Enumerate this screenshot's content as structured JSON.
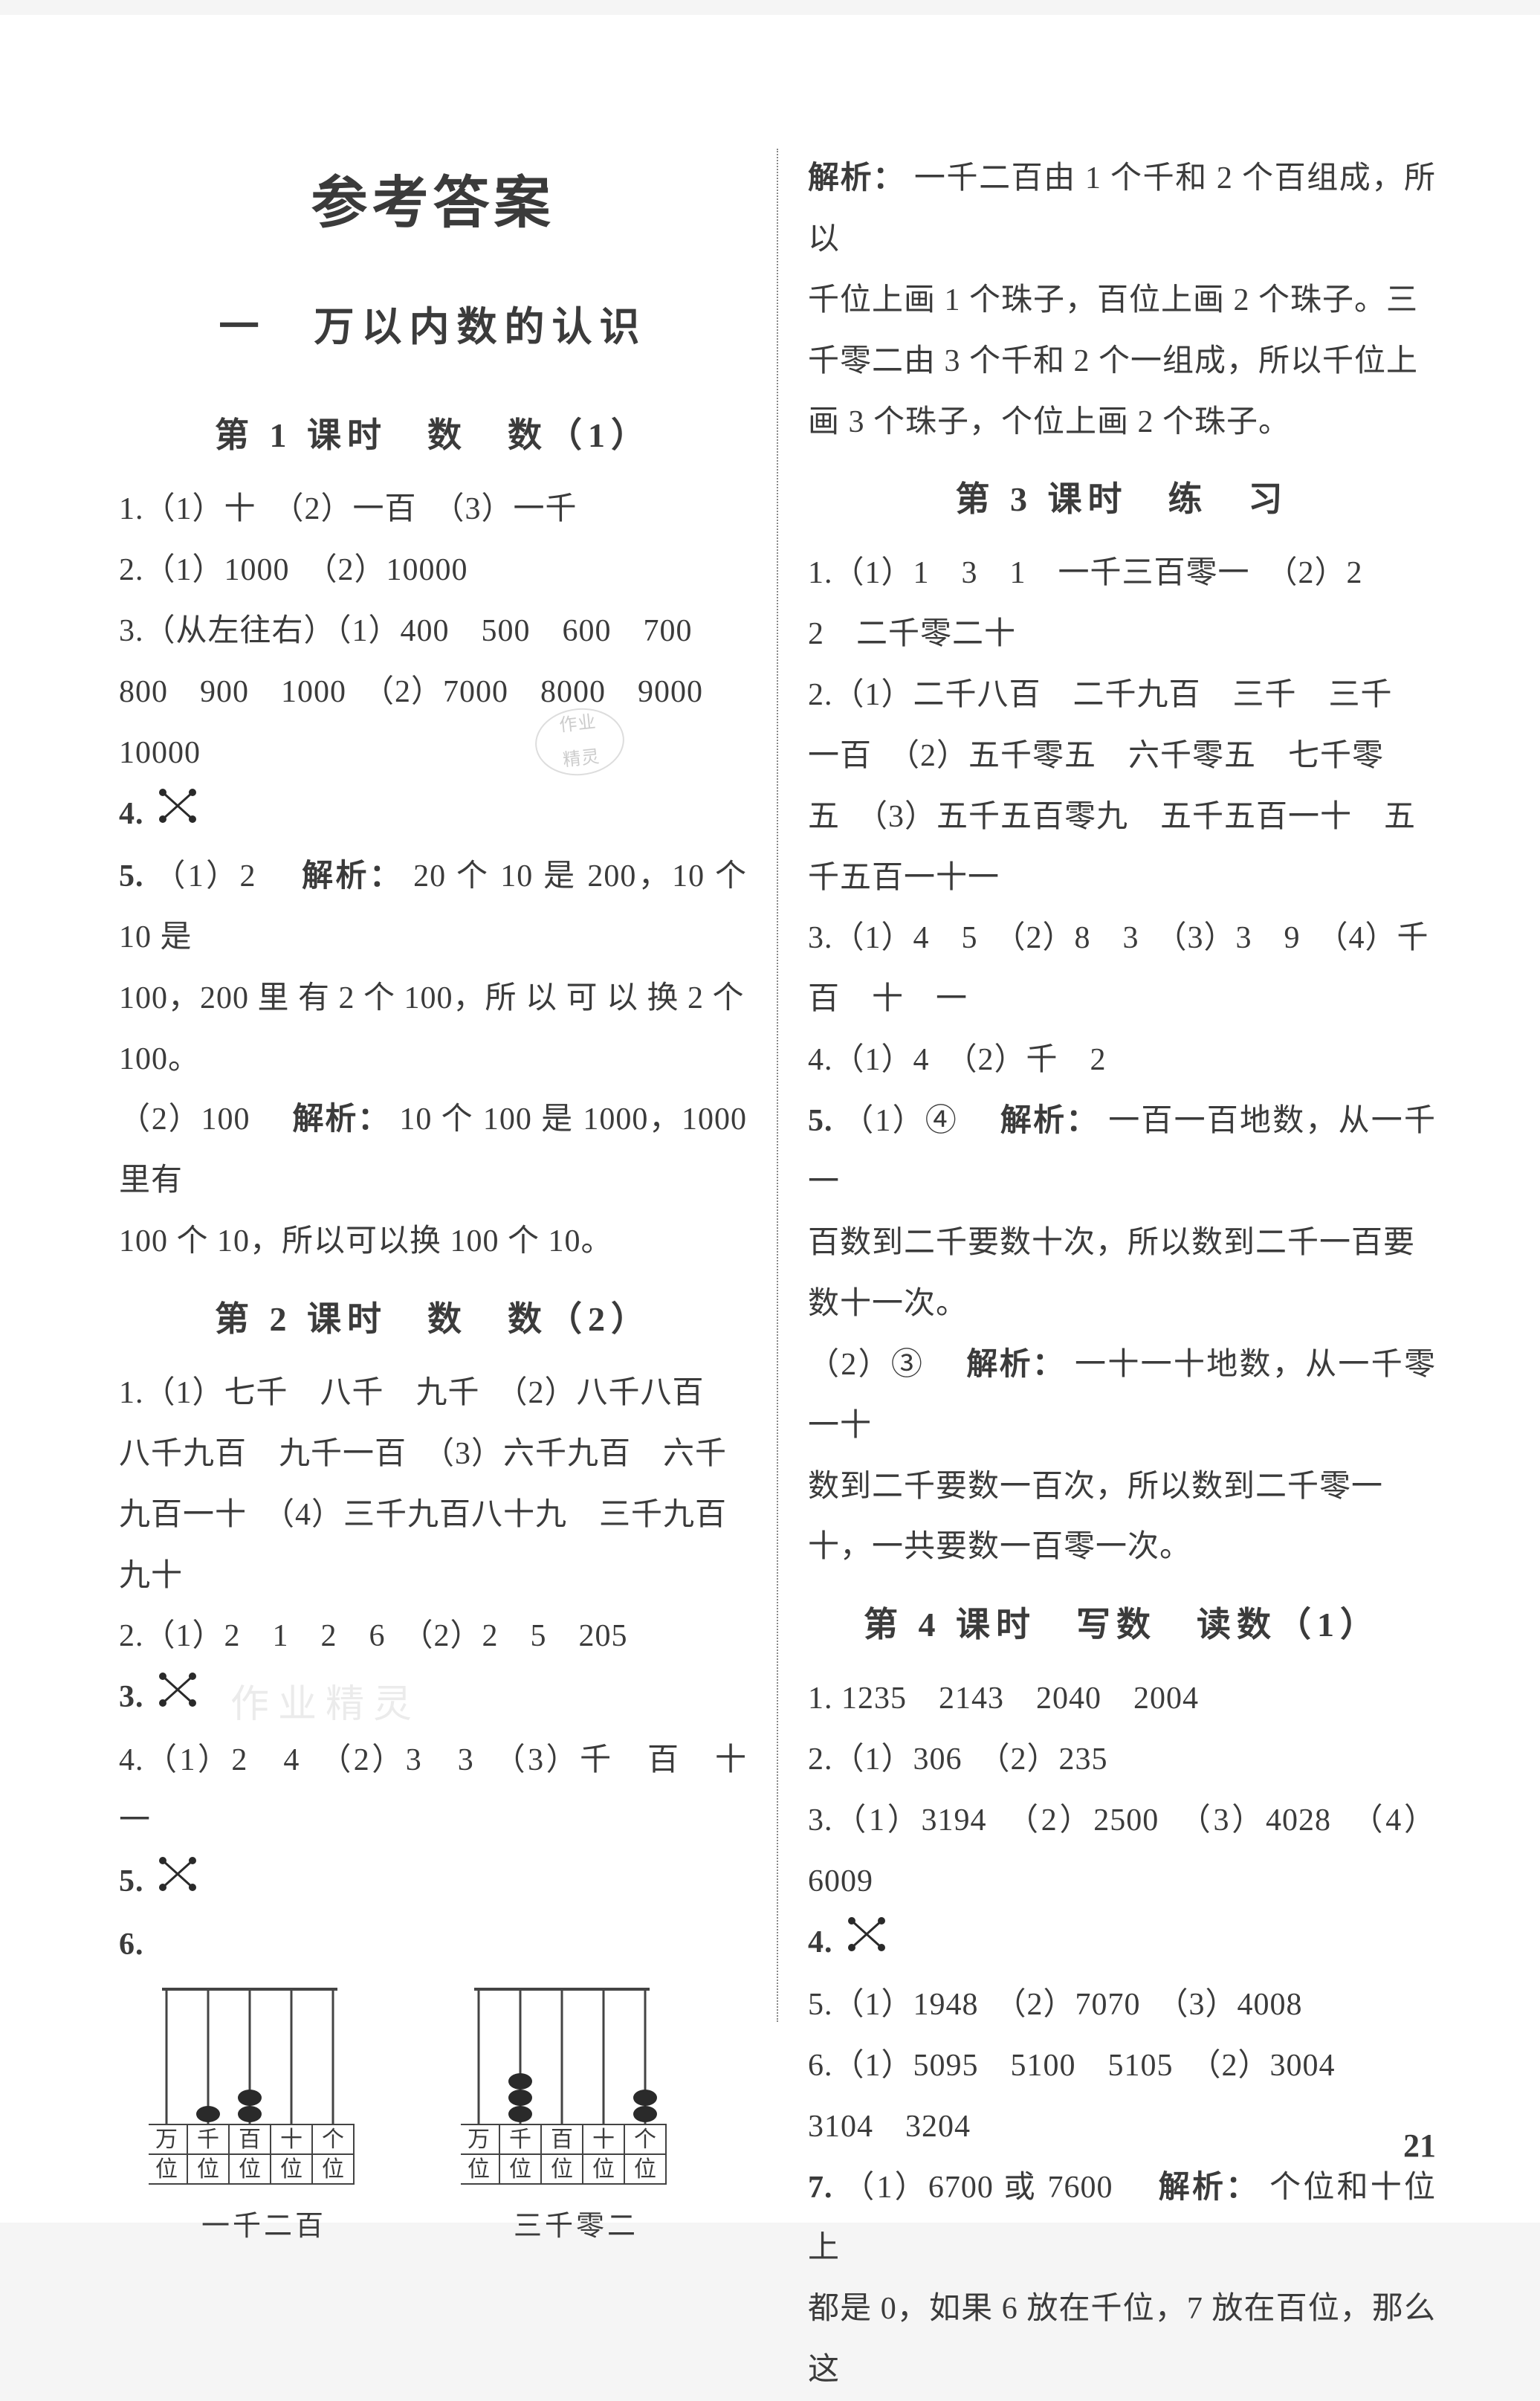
{
  "title": "参考答案",
  "chapter": "一　万以内数的认识",
  "pageNumber": "21",
  "colors": {
    "text": "#3b3b3b",
    "bg": "#ffffff",
    "divider": "#888888",
    "abacusFrame": "#444444",
    "bead": "#2a2a2a",
    "watermark": "#d8d8d8"
  },
  "leftCol": {
    "lesson1": {
      "heading": "第 1 课时　数　数（1）",
      "l1": "1.（1）十　（2）一百　（3）一千",
      "l2": "2.（1）1000　（2）10000",
      "l3a": "3.（从左往右）（1）400　500　600　700",
      "l3b": "800　900　1000　（2）7000　8000　9000",
      "l3c": "10000",
      "l4": "4.",
      "l5a_num": "5.",
      "l5a": "（1）2　",
      "l5a_bold": "解析：",
      "l5a_rest": "20 个 10 是 200，10 个 10 是",
      "l5b": "100，200 里 有 2 个 100，所 以 可 以 换 2 个",
      "l5c": "100。",
      "l5d": "（2）100　",
      "l5d_bold": "解析：",
      "l5d_rest": "10 个 100 是 1000，1000 里有",
      "l5e": "100 个 10，所以可以换 100 个 10。"
    },
    "lesson2": {
      "heading": "第 2 课时　数　数（2）",
      "l1a": "1.（1）七千　八千　九千　（2）八千八百",
      "l1b": "八千九百　九千一百　（3）六千九百　六千",
      "l1c": "九百一十　（4）三千九百八十九　三千九百",
      "l1d": "九十",
      "l2": "2.（1）2　1　2　6　（2）2　5　205",
      "l3": "3.",
      "l4": "4.（1）2　4　（2）3　3　（3）千　百　十　一",
      "l5": "5.",
      "l6": "6.",
      "abacus1": {
        "label": "一千二百",
        "columns": [
          "万位",
          "千位",
          "百位",
          "十位",
          "个位"
        ],
        "beads": [
          0,
          1,
          2,
          0,
          0
        ]
      },
      "abacus2": {
        "label": "三千零二",
        "columns": [
          "万位",
          "千位",
          "百位",
          "十位",
          "个位"
        ],
        "beads": [
          0,
          3,
          0,
          0,
          2
        ]
      }
    }
  },
  "rightCol": {
    "cont": {
      "l1_bold": "解析：",
      "l1": "一千二百由 1 个千和 2 个百组成，所以",
      "l2": "千位上画 1 个珠子，百位上画 2 个珠子。三",
      "l3": "千零二由 3 个千和 2 个一组成，所以千位上",
      "l4": "画 3 个珠子，个位上画 2 个珠子。"
    },
    "lesson3": {
      "heading": "第 3 课时　练　习",
      "l1a": "1.（1）1　3　1　一千三百零一　（2）2",
      "l1b": "2　二千零二十",
      "l2a": "2.（1）二千八百　二千九百　三千　三千",
      "l2b": "一百　（2）五千零五　六千零五　七千零",
      "l2c": "五　（3）五千五百零九　五千五百一十　五",
      "l2d": "千五百一十一",
      "l3a": "3.（1）4　5　（2）8　3　（3）3　9　（4）千",
      "l3b": "百　十　一",
      "l4": "4.（1）4　（2）千　2",
      "l5a_num": "5.",
      "l5a": "（1）④　",
      "l5a_bold": "解析：",
      "l5a_rest": "一百一百地数，从一千一",
      "l5b": "百数到二千要数十次，所以数到二千一百要",
      "l5c": "数十一次。",
      "l5d": "（2）③　",
      "l5d_bold": "解析：",
      "l5d_rest": "一十一十地数，从一千零一十",
      "l5e": "数到二千要数一百次，所以数到二千零一",
      "l5f": "十，一共要数一百零一次。"
    },
    "lesson4": {
      "heading": "第 4 课时　写数　读数（1）",
      "l1": "1. 1235　2143　2040　2004",
      "l2": "2.（1）306　（2）235",
      "l3": "3.（1）3194　（2）2500　（3）4028　（4）6009",
      "l4": "4.",
      "l5": "5.（1）1948　（2）7070　（3）4008",
      "l6a": "6.（1）5095　5100　5105　（2）3004",
      "l6b": "3104　3204",
      "l7a_num": "7.",
      "l7a": "（1）6700 或 7600　",
      "l7a_bold": "解析：",
      "l7a_rest": "个位和十位上",
      "l7b": "都是 0，如果 6 放在千位，7 放在百位，那么这"
    }
  },
  "stamp": {
    "top": "作业",
    "bottom": "精灵"
  },
  "watermarkText": "作业精灵"
}
